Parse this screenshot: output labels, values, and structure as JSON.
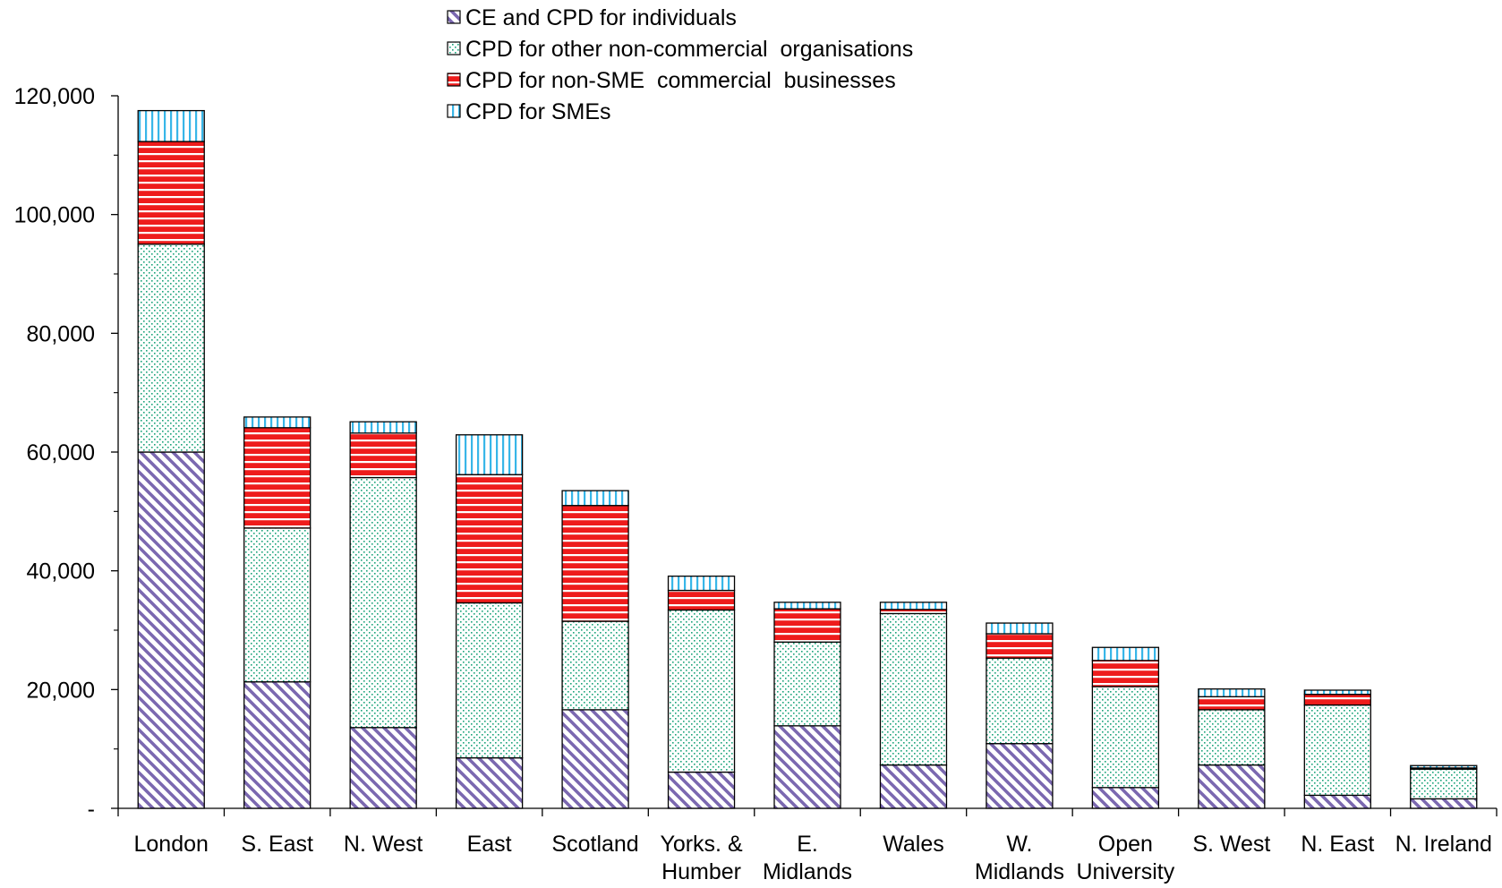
{
  "chart_data": {
    "type": "bar",
    "stacked": true,
    "categories": [
      "London",
      "S. East",
      "N. West",
      "East",
      "Scotland",
      "Yorks. & Humber",
      "E. Midlands",
      "Wales",
      "W. Midlands",
      "Open University",
      "S. West",
      "N. East",
      "N. Ireland"
    ],
    "category_lines": [
      [
        "London"
      ],
      [
        "S. East"
      ],
      [
        "N. West"
      ],
      [
        "East"
      ],
      [
        "Scotland"
      ],
      [
        "Yorks. &",
        "Humber"
      ],
      [
        "E.",
        "Midlands"
      ],
      [
        "Wales"
      ],
      [
        "W.",
        "Midlands"
      ],
      [
        "Open",
        "University"
      ],
      [
        "S. West"
      ],
      [
        "N. East"
      ],
      [
        "N. Ireland"
      ]
    ],
    "series": [
      {
        "name": "CE and CPD for individuals",
        "pattern": "diagonal-hatch",
        "color": "#7b68b0",
        "values": [
          60000,
          21300,
          13600,
          8500,
          16600,
          6100,
          13900,
          7300,
          10900,
          3500,
          7300,
          2200,
          1600
        ]
      },
      {
        "name": "CPD for other non-commercial  organisations",
        "pattern": "dotted",
        "color": "#1aa37a",
        "values": [
          35000,
          25900,
          42100,
          26100,
          14900,
          27300,
          14100,
          25500,
          14400,
          17000,
          9300,
          15200,
          5000
        ]
      },
      {
        "name": "CPD for non-SME  commercial  businesses",
        "pattern": "horizontal-stripes",
        "color": "#ee1c1c",
        "values": [
          17300,
          16900,
          7500,
          21600,
          19500,
          3300,
          5600,
          700,
          4100,
          4400,
          2200,
          1800,
          200
        ]
      },
      {
        "name": "CPD for SMEs",
        "pattern": "vertical-stripes",
        "color": "#38b6e8",
        "values": [
          5200,
          1800,
          1900,
          6700,
          2500,
          2400,
          1100,
          1200,
          1800,
          2200,
          1300,
          700,
          400
        ]
      }
    ],
    "yticks": [
      0,
      20000,
      40000,
      60000,
      80000,
      100000,
      120000
    ],
    "ytick_labels": [
      "-",
      "20,000",
      "40,000",
      "60,000",
      "80,000",
      "100,000",
      "120,000"
    ],
    "ylim": [
      0,
      120000
    ],
    "legend_position": "top-center",
    "grid": false
  }
}
